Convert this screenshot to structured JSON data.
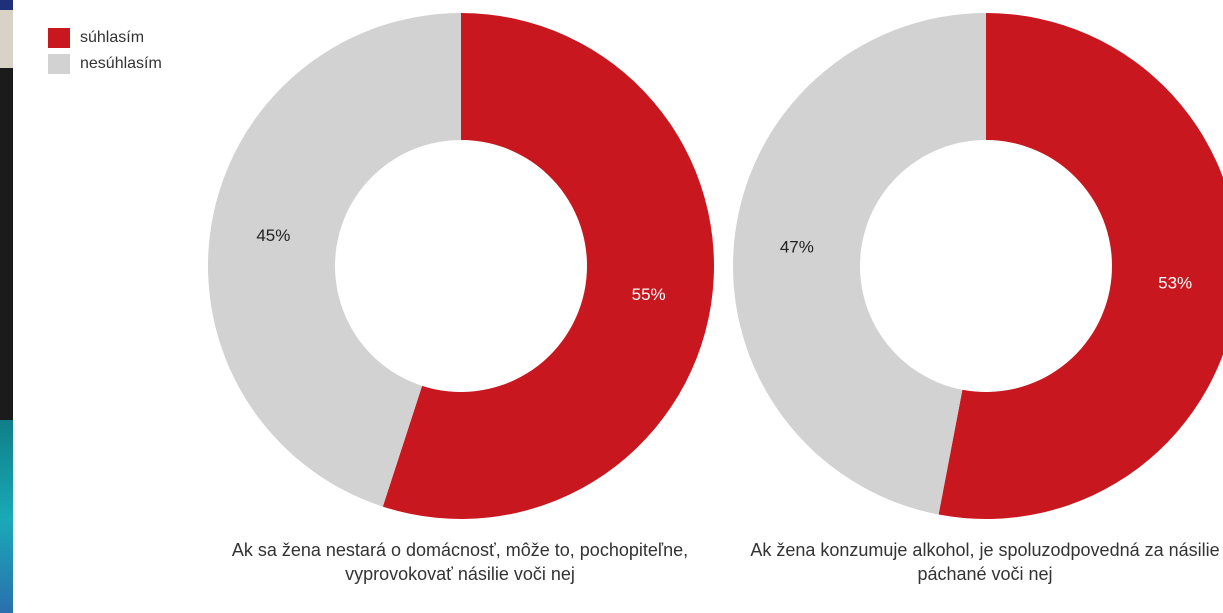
{
  "legend": {
    "agree": "súhlasím",
    "disagree": "nesúhlasím"
  },
  "colors": {
    "agree": "#c8171e",
    "disagree": "#d2d2d2",
    "hole": "#ffffff",
    "label_on_red": "#ffffff",
    "label_on_gray": "#222222"
  },
  "chart_data": [
    {
      "type": "pie",
      "caption": "Ak sa žena nestará o domácnosť, môže to, pochopiteľne, vyprovokovať násilie voči nej",
      "slices": [
        {
          "category": "súhlasím",
          "value": 55,
          "label": "55%"
        },
        {
          "category": "nesúhlasím",
          "value": 45,
          "label": "45%"
        }
      ]
    },
    {
      "type": "pie",
      "caption": "Ak žena konzumuje alkohol, je spoluzodpovedná za násilie páchané voči nej",
      "slices": [
        {
          "category": "súhlasím",
          "value": 53,
          "label": "53%"
        },
        {
          "category": "nesúhlasím",
          "value": 47,
          "label": "47%"
        }
      ]
    }
  ]
}
